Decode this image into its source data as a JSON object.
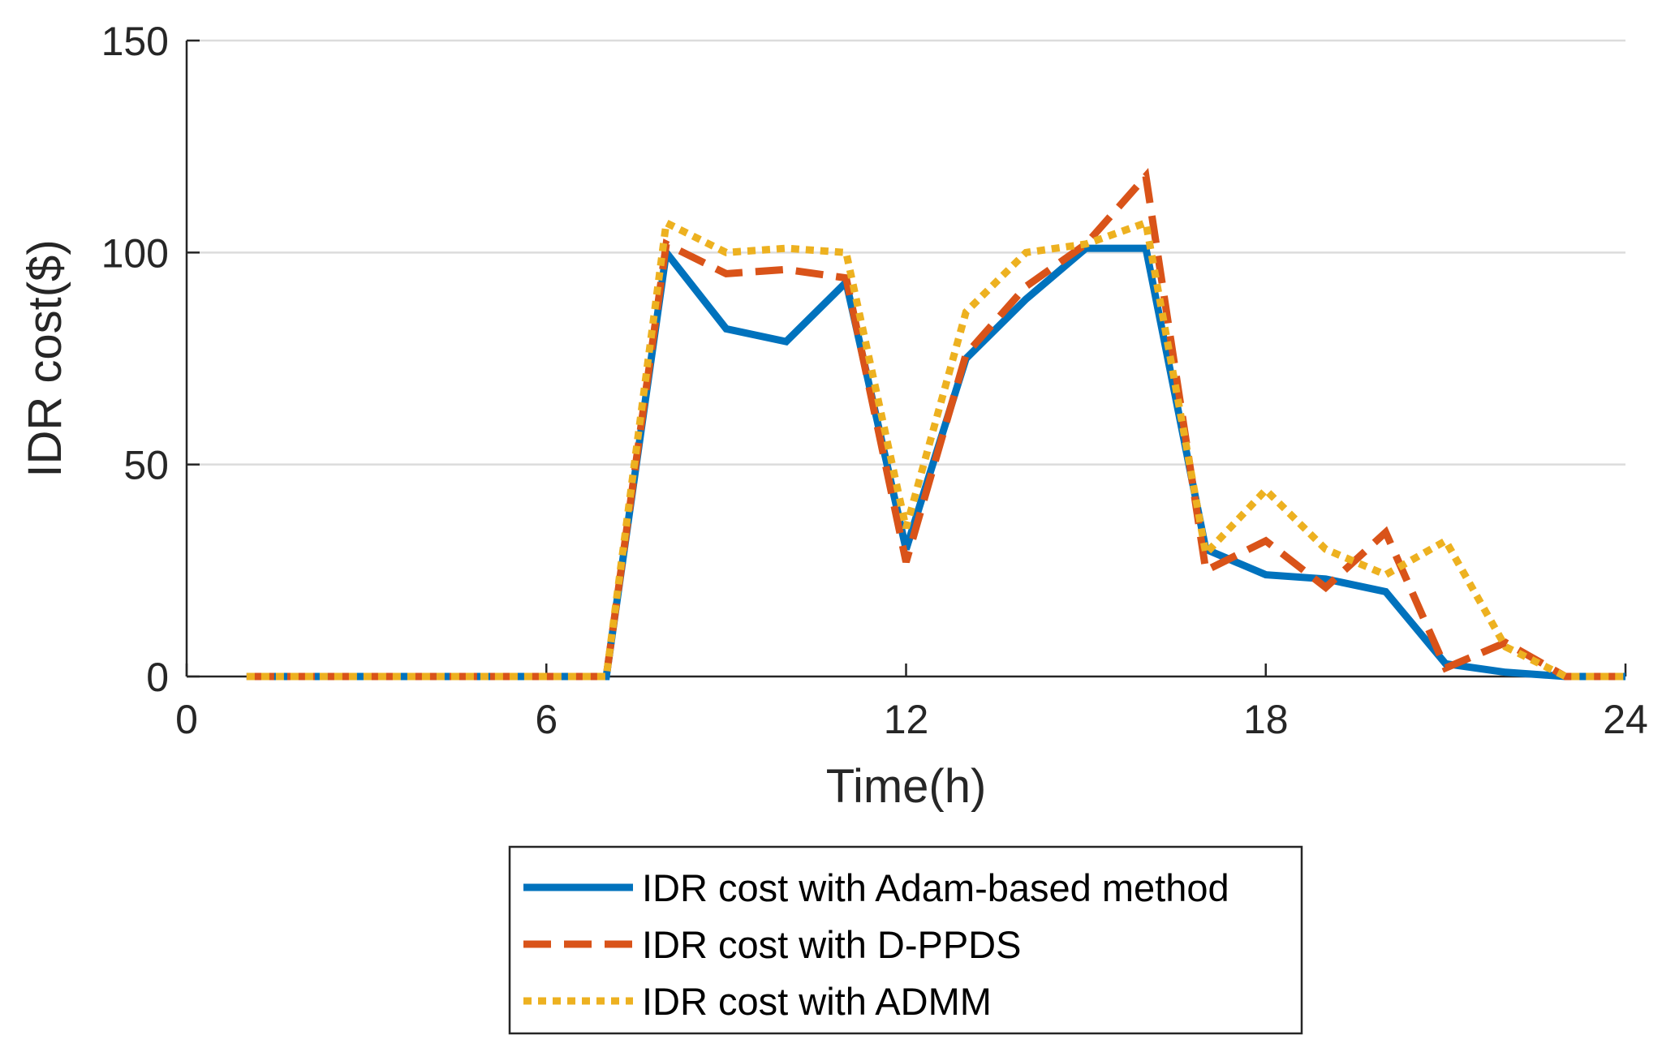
{
  "chart_data": {
    "type": "line",
    "title": "",
    "xlabel": "Time(h)",
    "ylabel": "IDR cost($)",
    "xlim": [
      0,
      24
    ],
    "ylim": [
      0,
      150
    ],
    "xticks": [
      0,
      6,
      12,
      18,
      24
    ],
    "yticks": [
      0,
      50,
      100,
      150
    ],
    "grid": "horizontal",
    "legend_position": "bottom-outside",
    "x": [
      1,
      2,
      3,
      4,
      5,
      6,
      7,
      8,
      9,
      10,
      11,
      12,
      13,
      14,
      15,
      16,
      17,
      18,
      19,
      20,
      21,
      22,
      23,
      24
    ],
    "series": [
      {
        "name": "IDR cost with Adam-based method",
        "color": "#0072BD",
        "style": "solid",
        "values": [
          0,
          0,
          0,
          0,
          0,
          0,
          0,
          100,
          82,
          79,
          93,
          30,
          75,
          89,
          101,
          101,
          30,
          24,
          23,
          20,
          3,
          1,
          0,
          0
        ]
      },
      {
        "name": "IDR cost with D-PPDS",
        "color": "#D95319",
        "style": "dashed",
        "values": [
          0,
          0,
          0,
          0,
          0,
          0,
          0,
          102,
          95,
          96,
          94,
          27,
          76,
          92,
          102,
          118,
          25,
          32,
          21,
          34,
          2,
          8,
          0,
          0
        ]
      },
      {
        "name": "IDR cost with ADMM",
        "color": "#EDB120",
        "style": "dotted",
        "values": [
          0,
          0,
          0,
          0,
          0,
          0,
          0,
          107,
          100,
          101,
          100,
          35,
          86,
          100,
          102,
          107,
          29,
          44,
          30,
          24,
          32,
          7,
          0,
          0
        ]
      }
    ]
  }
}
